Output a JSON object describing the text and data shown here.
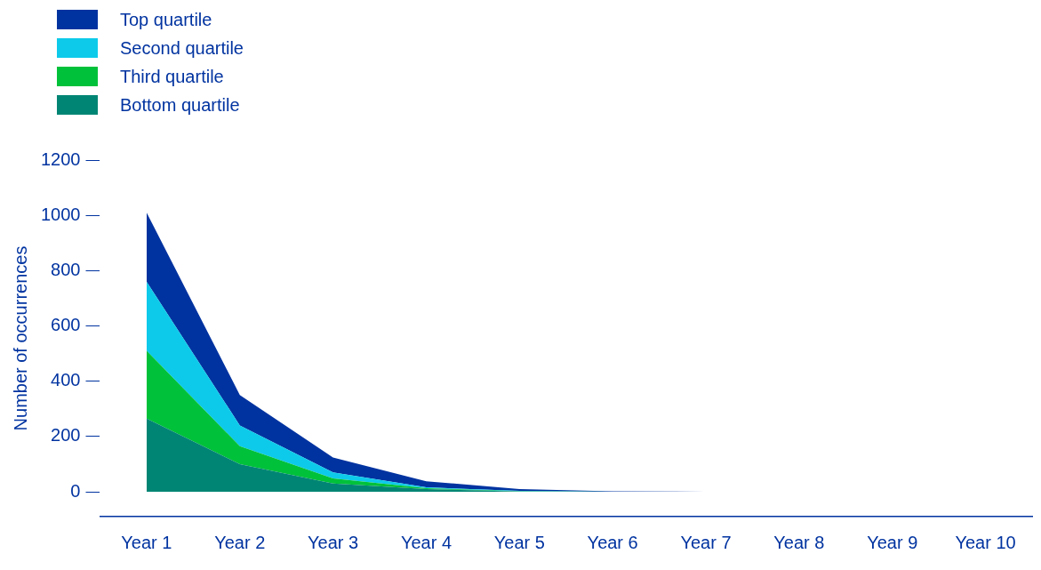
{
  "chart_data": {
    "type": "area",
    "stacked": true,
    "ylabel": "Number of occurrences",
    "legend": "top left",
    "grid": false,
    "categories": [
      "Year 1",
      "Year 2",
      "Year 3",
      "Year 4",
      "Year 5",
      "Year 6",
      "Year 7",
      "Year 8",
      "Year 9",
      "Year 10"
    ],
    "ylim": [
      -90,
      1200
    ],
    "yticks": [
      0,
      200,
      400,
      600,
      800,
      1000,
      1200
    ],
    "series": [
      {
        "name": "Bottom quartile",
        "color": "#008574",
        "values": [
          265,
          100,
          30,
          10,
          1,
          0,
          0,
          null,
          null,
          null
        ]
      },
      {
        "name": "Third quartile",
        "color": "#00c13a",
        "values": [
          245,
          65,
          18,
          3,
          1,
          0,
          0,
          null,
          null,
          null
        ]
      },
      {
        "name": "Second quartile",
        "color": "#0dcaea",
        "values": [
          250,
          75,
          22,
          3,
          1,
          0,
          0,
          null,
          null,
          null
        ]
      },
      {
        "name": "Top quartile",
        "color": "#0033a0",
        "values": [
          250,
          110,
          54,
          22,
          7,
          2,
          0,
          null,
          null,
          null
        ]
      }
    ]
  }
}
